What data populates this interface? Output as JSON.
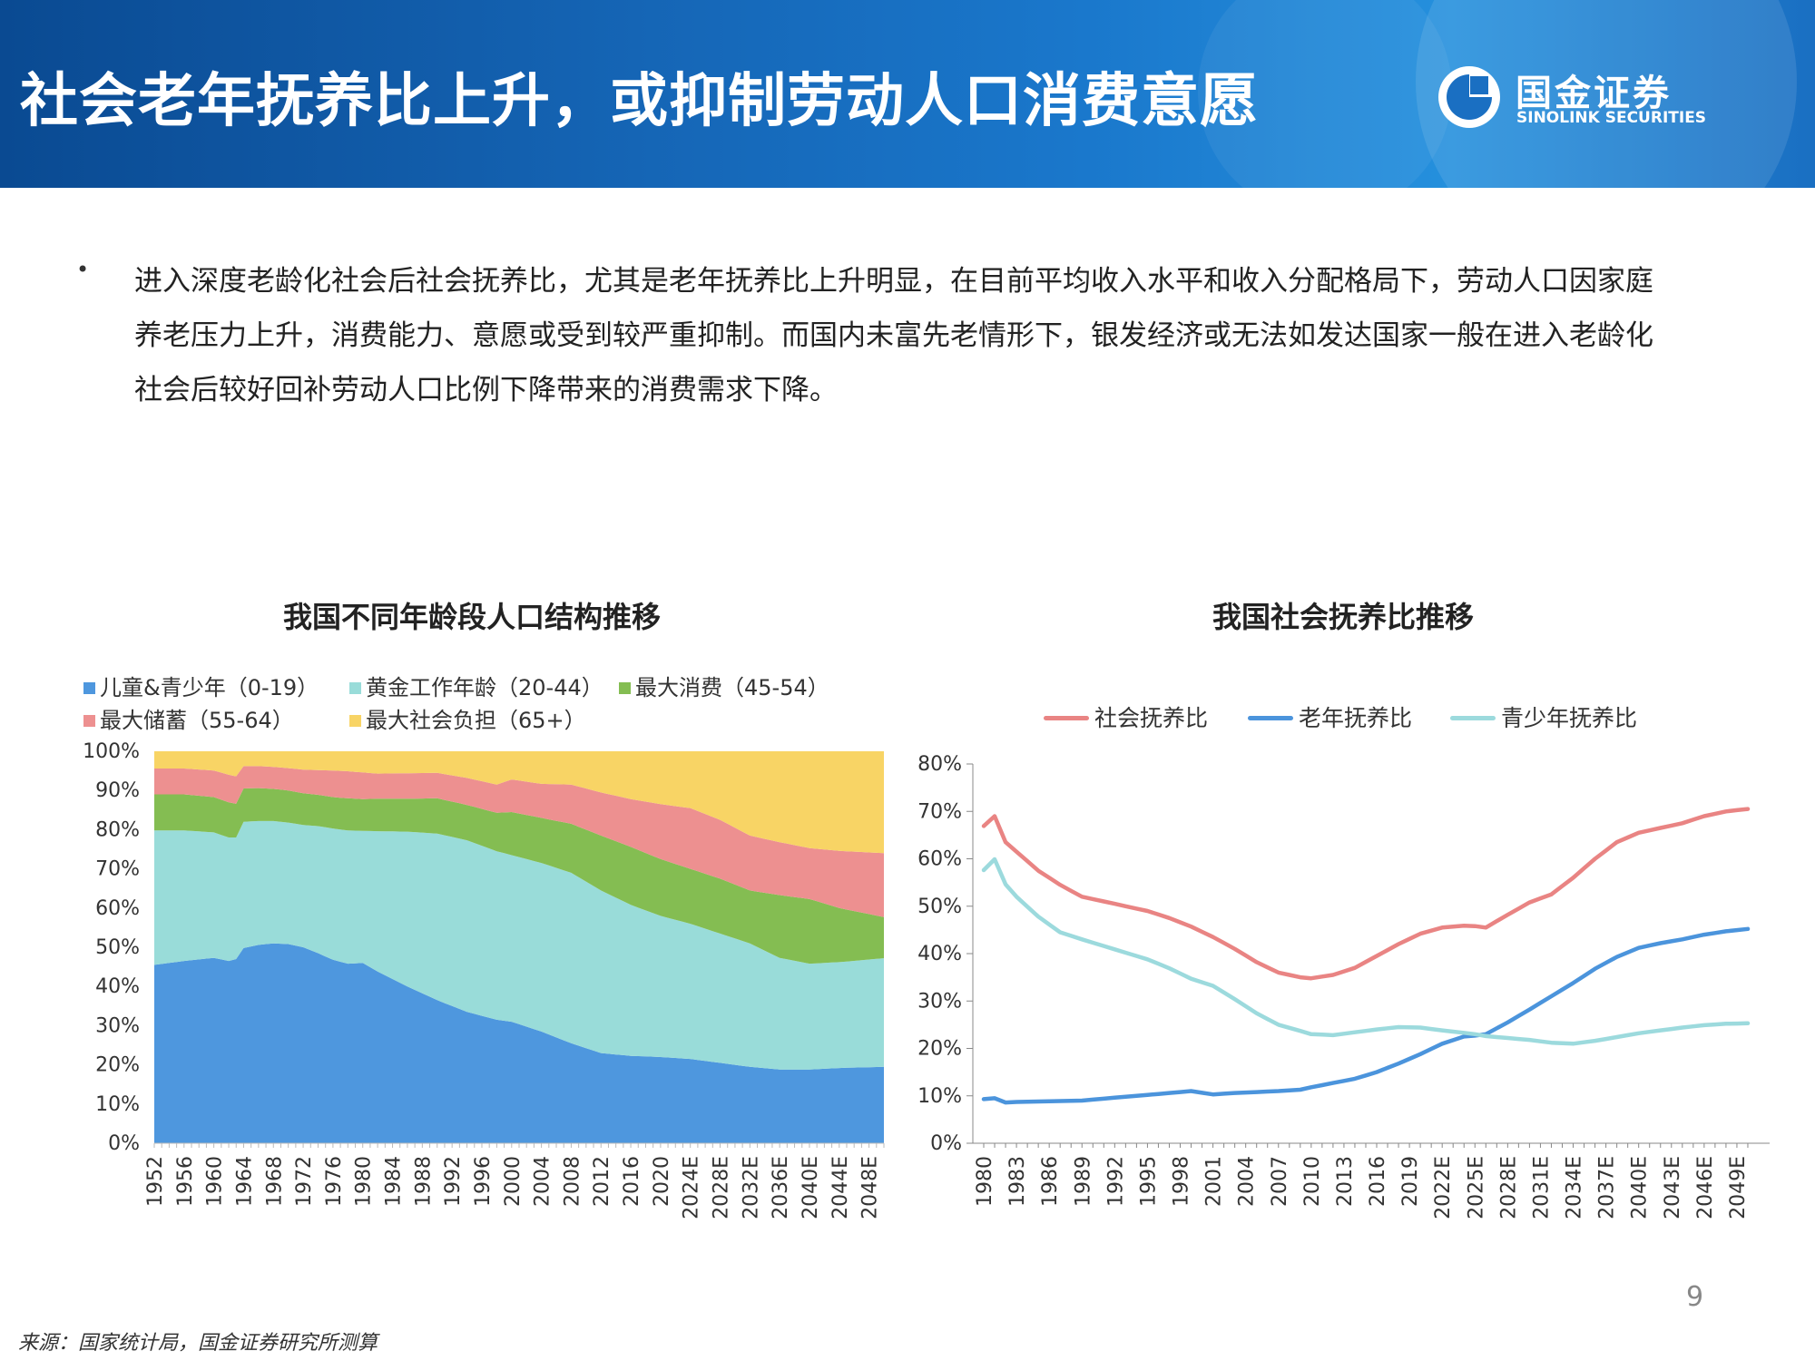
{
  "header": {
    "title": "社会老年抚养比上升，或抑制劳动人口消费意愿",
    "logo_cn": "国金证券",
    "logo_en": "SINOLINK SECURITIES"
  },
  "bullet": {
    "marker": "•",
    "text": "进入深度老龄化社会后社会抚养比，尤其是老年抚养比上升明显，在目前平均收入水平和收入分配格局下，劳动人口因家庭养老压力上升，消费能力、意愿或受到较严重抑制。而国内未富先老情形下，银发经济或无法如发达国家一般在进入老龄化社会后较好回补劳动人口比例下降带来的消费需求下降。"
  },
  "footer": {
    "page_number": "9",
    "source": "来源：国家统计局，国金证券研究所测算"
  },
  "chart_data": [
    {
      "type": "area",
      "stacked": true,
      "title": "我国不同年龄段人口结构推移",
      "legend_position": "top",
      "x": [
        "1952",
        "1953",
        "1954",
        "1955",
        "1956",
        "1957",
        "1958",
        "1959",
        "1960",
        "1961",
        "1962",
        "1963",
        "1964",
        "1965",
        "1966",
        "1967",
        "1968",
        "1969",
        "1970",
        "1971",
        "1972",
        "1973",
        "1974",
        "1975",
        "1976",
        "1977",
        "1978",
        "1979",
        "1980",
        "1981",
        "1982",
        "1983",
        "1984",
        "1985",
        "1986",
        "1987",
        "1988",
        "1989",
        "1990",
        "1991",
        "1992",
        "1993",
        "1994",
        "1995",
        "1996",
        "1997",
        "1998",
        "1999",
        "2000",
        "2001",
        "2002",
        "2003",
        "2004",
        "2005",
        "2006",
        "2007",
        "2008",
        "2009",
        "2010",
        "2011",
        "2012",
        "2013",
        "2014",
        "2015",
        "2016",
        "2017",
        "2018",
        "2019",
        "2020",
        "2021",
        "2022",
        "2023E",
        "2024E",
        "2025E",
        "2026E",
        "2027E",
        "2028E",
        "2029E",
        "2030E",
        "2031E",
        "2032E",
        "2033E",
        "2034E",
        "2035E",
        "2036E",
        "2037E",
        "2038E",
        "2039E",
        "2040E",
        "2041E",
        "2042E",
        "2043E",
        "2044E",
        "2045E",
        "2046E",
        "2047E",
        "2048E",
        "2049E",
        "2050E"
      ],
      "x_tick_labels": [
        "1952",
        "1956",
        "1960",
        "1964",
        "1968",
        "1972",
        "1976",
        "1980",
        "1984",
        "1988",
        "1992",
        "1996",
        "2000",
        "2004",
        "2008",
        "2012",
        "2016",
        "2020",
        "2024E",
        "2028E",
        "2032E",
        "2036E",
        "2040E",
        "2044E",
        "2048E"
      ],
      "series_keypoints_note_free": true,
      "keyframes": {
        "years": [
          1952,
          1956,
          1960,
          1962,
          1963,
          1964,
          1966,
          1968,
          1970,
          1972,
          1974,
          1976,
          1978,
          1980,
          1982,
          1986,
          1990,
          1994,
          1998,
          2000,
          2004,
          2008,
          2012,
          2016,
          2020,
          2024,
          2028,
          2032,
          2036,
          2040,
          2044,
          2050
        ],
        "child": [
          45.5,
          46.5,
          47.3,
          46.5,
          47.0,
          49.8,
          50.6,
          51.0,
          50.8,
          50.0,
          48.5,
          46.8,
          45.8,
          46.0,
          43.8,
          40.0,
          36.5,
          33.5,
          31.5,
          31.0,
          28.5,
          25.5,
          23.0,
          22.3,
          22.0,
          21.5,
          20.5,
          19.5,
          18.8,
          18.8,
          19.2,
          19.5
        ],
        "young_workers": [
          34.3,
          33.3,
          32.0,
          31.5,
          31.0,
          32.2,
          31.6,
          31.2,
          31.0,
          31.2,
          32.4,
          33.5,
          34.0,
          33.7,
          35.8,
          39.5,
          42.5,
          43.8,
          43.0,
          42.5,
          43.0,
          43.5,
          41.5,
          38.5,
          36.0,
          34.5,
          33.0,
          31.5,
          28.5,
          27.0,
          27.0,
          27.7
        ],
        "max_consumption": [
          9.2,
          9.2,
          9.0,
          9.0,
          8.6,
          8.5,
          8.4,
          8.2,
          8.2,
          8.1,
          8.0,
          8.0,
          8.2,
          8.1,
          8.3,
          8.4,
          9.0,
          9.0,
          9.8,
          11.0,
          11.5,
          12.5,
          14.0,
          14.8,
          14.5,
          14.0,
          14.0,
          13.5,
          16.0,
          16.5,
          13.8,
          10.5
        ],
        "max_savings": [
          6.6,
          6.6,
          6.8,
          7.0,
          7.0,
          5.7,
          5.6,
          5.6,
          5.7,
          6.0,
          6.3,
          6.8,
          6.9,
          6.8,
          6.4,
          6.5,
          6.5,
          6.9,
          7.2,
          8.3,
          8.7,
          10.0,
          11.0,
          12.2,
          14.0,
          15.5,
          15.0,
          14.0,
          13.5,
          13.0,
          14.6,
          16.3
        ],
        "max_social_burden": [
          4.4,
          4.4,
          4.9,
          6.0,
          6.4,
          3.8,
          3.8,
          4.0,
          4.3,
          4.7,
          4.8,
          4.9,
          5.1,
          5.4,
          5.7,
          5.6,
          5.5,
          6.8,
          8.5,
          7.2,
          8.3,
          8.5,
          10.5,
          12.2,
          13.5,
          14.5,
          17.5,
          21.5,
          23.2,
          24.7,
          25.4,
          26.0
        ]
      },
      "series": [
        {
          "key": "child",
          "name": "儿童&青少年（0-19）",
          "color": "#4e97de"
        },
        {
          "key": "young_workers",
          "name": "黄金工作年龄（20-44）",
          "color": "#99dcd9"
        },
        {
          "key": "max_consumption",
          "name": "最大消费（45-54）",
          "color": "#84bd52"
        },
        {
          "key": "max_savings",
          "name": "最大储蓄（55-64）",
          "color": "#ed9090"
        },
        {
          "key": "max_social_burden",
          "name": "最大社会负担（65+）",
          "color": "#f8d465"
        }
      ],
      "y_ticks": [
        "0%",
        "10%",
        "20%",
        "30%",
        "40%",
        "50%",
        "60%",
        "70%",
        "80%",
        "90%",
        "100%"
      ],
      "ylim": [
        0,
        100
      ]
    },
    {
      "type": "line",
      "title": "我国社会抚养比推移",
      "legend_position": "top",
      "x_tick_labels": [
        "1980",
        "1983",
        "1986",
        "1989",
        "1992",
        "1995",
        "1998",
        "2001",
        "2004",
        "2007",
        "2010",
        "2013",
        "2016",
        "2019",
        "2022E",
        "2025E",
        "2028E",
        "2031E",
        "2034E",
        "2037E",
        "2040E",
        "2043E",
        "2046E",
        "2049E"
      ],
      "x_range": [
        1980,
        2050
      ],
      "keyframes": {
        "years": [
          1980,
          1981,
          1982,
          1983,
          1985,
          1987,
          1989,
          1991,
          1993,
          1995,
          1997,
          1999,
          2001,
          2003,
          2005,
          2007,
          2009,
          2010,
          2012,
          2014,
          2016,
          2018,
          2020,
          2022,
          2024,
          2025,
          2026,
          2028,
          2030,
          2032,
          2034,
          2036,
          2038,
          2040,
          2042,
          2044,
          2046,
          2048,
          2050
        ],
        "social": [
          66.9,
          69.0,
          63.5,
          61.5,
          57.5,
          54.5,
          52.0,
          51.0,
          50.0,
          49.0,
          47.5,
          45.7,
          43.5,
          41.0,
          38.2,
          36.0,
          35.0,
          34.8,
          35.5,
          37.0,
          39.5,
          42.0,
          44.2,
          45.5,
          45.9,
          45.8,
          45.5,
          48.2,
          50.8,
          52.5,
          56.0,
          60.0,
          63.5,
          65.5,
          66.5,
          67.5,
          69.0,
          70.0,
          70.5
        ],
        "elderly": [
          9.3,
          9.5,
          8.6,
          8.7,
          8.8,
          8.9,
          9.0,
          9.4,
          9.8,
          10.2,
          10.6,
          11.0,
          10.3,
          10.6,
          10.8,
          11.0,
          11.3,
          11.8,
          12.7,
          13.6,
          15.0,
          16.8,
          18.8,
          21.0,
          22.5,
          22.7,
          23.0,
          25.5,
          28.2,
          31.0,
          33.8,
          36.8,
          39.3,
          41.2,
          42.2,
          43.0,
          44.0,
          44.7,
          45.2
        ],
        "youth": [
          57.6,
          59.9,
          54.6,
          52.0,
          47.8,
          44.5,
          43.0,
          41.6,
          40.2,
          38.8,
          36.9,
          34.7,
          33.2,
          30.4,
          27.4,
          25.0,
          23.7,
          23.0,
          22.8,
          23.4,
          24.0,
          24.5,
          24.4,
          23.8,
          23.3,
          23.0,
          22.6,
          22.2,
          21.8,
          21.2,
          21.0,
          21.6,
          22.4,
          23.2,
          23.8,
          24.4,
          24.9,
          25.2,
          25.3
        ]
      },
      "series": [
        {
          "key": "social",
          "name": "社会抚养比",
          "color": "#e98483"
        },
        {
          "key": "elderly",
          "name": "老年抚养比",
          "color": "#4b94dc"
        },
        {
          "key": "youth",
          "name": "青少年抚养比",
          "color": "#9cdadd"
        }
      ],
      "y_ticks": [
        "0%",
        "10%",
        "20%",
        "30%",
        "40%",
        "50%",
        "60%",
        "70%",
        "80%"
      ],
      "ylim": [
        0,
        80
      ]
    }
  ]
}
